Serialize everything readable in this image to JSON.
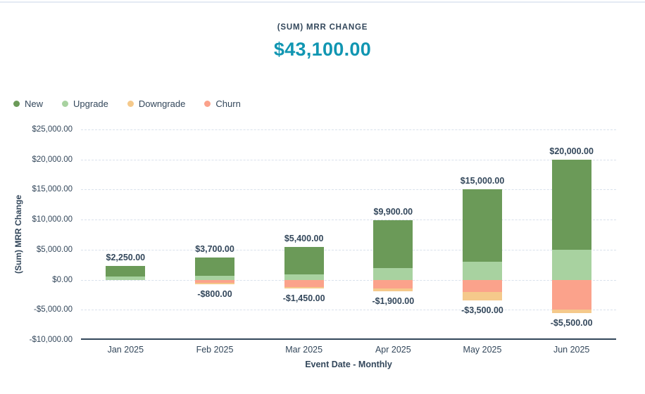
{
  "colors": {
    "text_navy": "#33475b",
    "accent_teal": "#1196b2",
    "gridline": "#d9e1ec"
  },
  "header": {
    "title": "(SUM) MRR CHANGE",
    "value": "$43,100.00"
  },
  "chart_data": {
    "type": "bar",
    "stacked": true,
    "title": "(SUM) MRR CHANGE",
    "total_value": "$43,100.00",
    "xlabel": "Event Date - Monthly",
    "ylabel": "(Sum) MRR Change",
    "ylim": [
      -10000,
      25000
    ],
    "ytick_step": 5000,
    "grid": "horizontal-dashed",
    "legend_position": "top-left",
    "categories": [
      "Jan 2025",
      "Feb 2025",
      "Mar 2025",
      "Apr 2025",
      "May 2025",
      "Jun 2025"
    ],
    "series": [
      {
        "name": "New",
        "color": "#6b9a58",
        "values": [
          1750,
          3000,
          4500,
          8000,
          12000,
          15000
        ]
      },
      {
        "name": "Upgrade",
        "color": "#a8d2a0",
        "values": [
          500,
          700,
          900,
          1900,
          3000,
          5000
        ]
      },
      {
        "name": "Downgrade",
        "color": "#f5c98b",
        "values": [
          0,
          -300,
          -250,
          -400,
          -1500,
          -500
        ]
      },
      {
        "name": "Churn",
        "color": "#fba28b",
        "values": [
          0,
          -500,
          -1200,
          -1500,
          -2000,
          -5000
        ]
      }
    ],
    "positive_totals": [
      2250,
      3700,
      5400,
      9900,
      15000,
      20000
    ],
    "negative_totals": [
      0,
      -800,
      -1450,
      -1900,
      -3500,
      -5500
    ],
    "positive_labels": [
      "$2,250.00",
      "$3,700.00",
      "$5,400.00",
      "$9,900.00",
      "$15,000.00",
      "$20,000.00"
    ],
    "negative_labels": [
      "",
      "-$800.00",
      "-$1,450.00",
      "-$1,900.00",
      "-$3,500.00",
      "-$5,500.00"
    ],
    "ytick_values": [
      25000,
      20000,
      15000,
      10000,
      5000,
      0,
      -5000,
      -10000
    ],
    "ytick_labels": [
      "$25,000.00",
      "$20,000.00",
      "$15,000.00",
      "$10,000.00",
      "$5,000.00",
      "$0.00",
      "-$5,000.00",
      "-$10,000.00"
    ]
  }
}
